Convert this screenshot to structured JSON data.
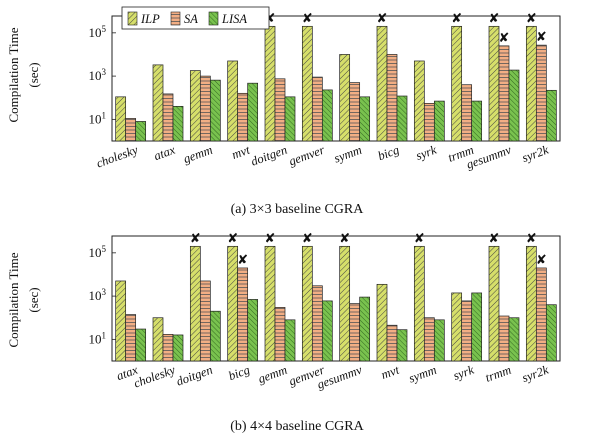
{
  "colors": {
    "ILP": "#d6df6a",
    "SA": "#f2ae84",
    "LISA": "#79c24e",
    "marker": "#111111"
  },
  "legend_position": "top-left",
  "chart_data": [
    {
      "type": "bar",
      "log_scale": true,
      "ylim": [
        1,
        600000
      ],
      "yticks": [
        "10^1",
        "10^3",
        "10^5"
      ],
      "ytick_values": [
        10,
        1000,
        100000
      ],
      "ylabel_lines": [
        "Compilation Time",
        "(sec)"
      ],
      "caption": "(a) 3×3 baseline CGRA",
      "grid": false,
      "categories": [
        "cholesky",
        "atax",
        "gemm",
        "mvt",
        "doitgen",
        "gemver",
        "symm",
        "bicg",
        "syrk",
        "trmm",
        "gesummv",
        "syr2k"
      ],
      "series": [
        {
          "name": "ILP",
          "icon": "hatch-diagonal",
          "values": [
            110,
            3300,
            1800,
            5000,
            200000,
            200000,
            10000,
            200000,
            5000,
            200000,
            200000,
            200000
          ],
          "timeout": [
            false,
            false,
            false,
            false,
            true,
            true,
            false,
            true,
            false,
            true,
            true,
            true
          ]
        },
        {
          "name": "SA",
          "icon": "hatch-horizontal",
          "values": [
            11,
            150,
            1000,
            160,
            750,
            900,
            500,
            10000,
            55,
            400,
            25000,
            27000
          ],
          "timeout": [
            false,
            false,
            false,
            false,
            false,
            false,
            false,
            false,
            false,
            false,
            true,
            true
          ]
        },
        {
          "name": "LISA",
          "icon": "hatch-diagonal-dense",
          "values": [
            8,
            40,
            650,
            470,
            110,
            230,
            110,
            120,
            70,
            70,
            1900,
            220
          ],
          "timeout": [
            false,
            false,
            false,
            false,
            false,
            false,
            false,
            false,
            false,
            false,
            false,
            false
          ]
        }
      ]
    },
    {
      "type": "bar",
      "log_scale": true,
      "ylim": [
        1,
        600000
      ],
      "yticks": [
        "10^1",
        "10^3",
        "10^5"
      ],
      "ytick_values": [
        10,
        1000,
        100000
      ],
      "ylabel_lines": [
        "Compilation Time",
        "(sec)"
      ],
      "caption": "(b) 4×4 baseline CGRA",
      "grid": false,
      "categories": [
        "atax",
        "cholesky",
        "doitgen",
        "bicg",
        "gemm",
        "gemver",
        "gesummv",
        "mvt",
        "symm",
        "syrk",
        "trmm",
        "syr2k"
      ],
      "series": [
        {
          "name": "ILP",
          "values": [
            5000,
            100,
            200000,
            200000,
            200000,
            200000,
            200000,
            3500,
            200000,
            1400,
            200000,
            200000
          ],
          "timeout": [
            false,
            false,
            true,
            true,
            true,
            true,
            true,
            false,
            true,
            false,
            true,
            true
          ]
        },
        {
          "name": "SA",
          "values": [
            140,
            17,
            5000,
            20000,
            300,
            3000,
            450,
            45,
            100,
            600,
            120,
            20000
          ],
          "timeout": [
            false,
            false,
            false,
            true,
            false,
            false,
            false,
            false,
            false,
            false,
            false,
            true
          ]
        },
        {
          "name": "LISA",
          "values": [
            30,
            16,
            200,
            700,
            80,
            600,
            900,
            28,
            80,
            1400,
            100,
            400
          ],
          "timeout": [
            false,
            false,
            false,
            false,
            false,
            false,
            false,
            false,
            false,
            false,
            false,
            false
          ]
        }
      ]
    }
  ]
}
